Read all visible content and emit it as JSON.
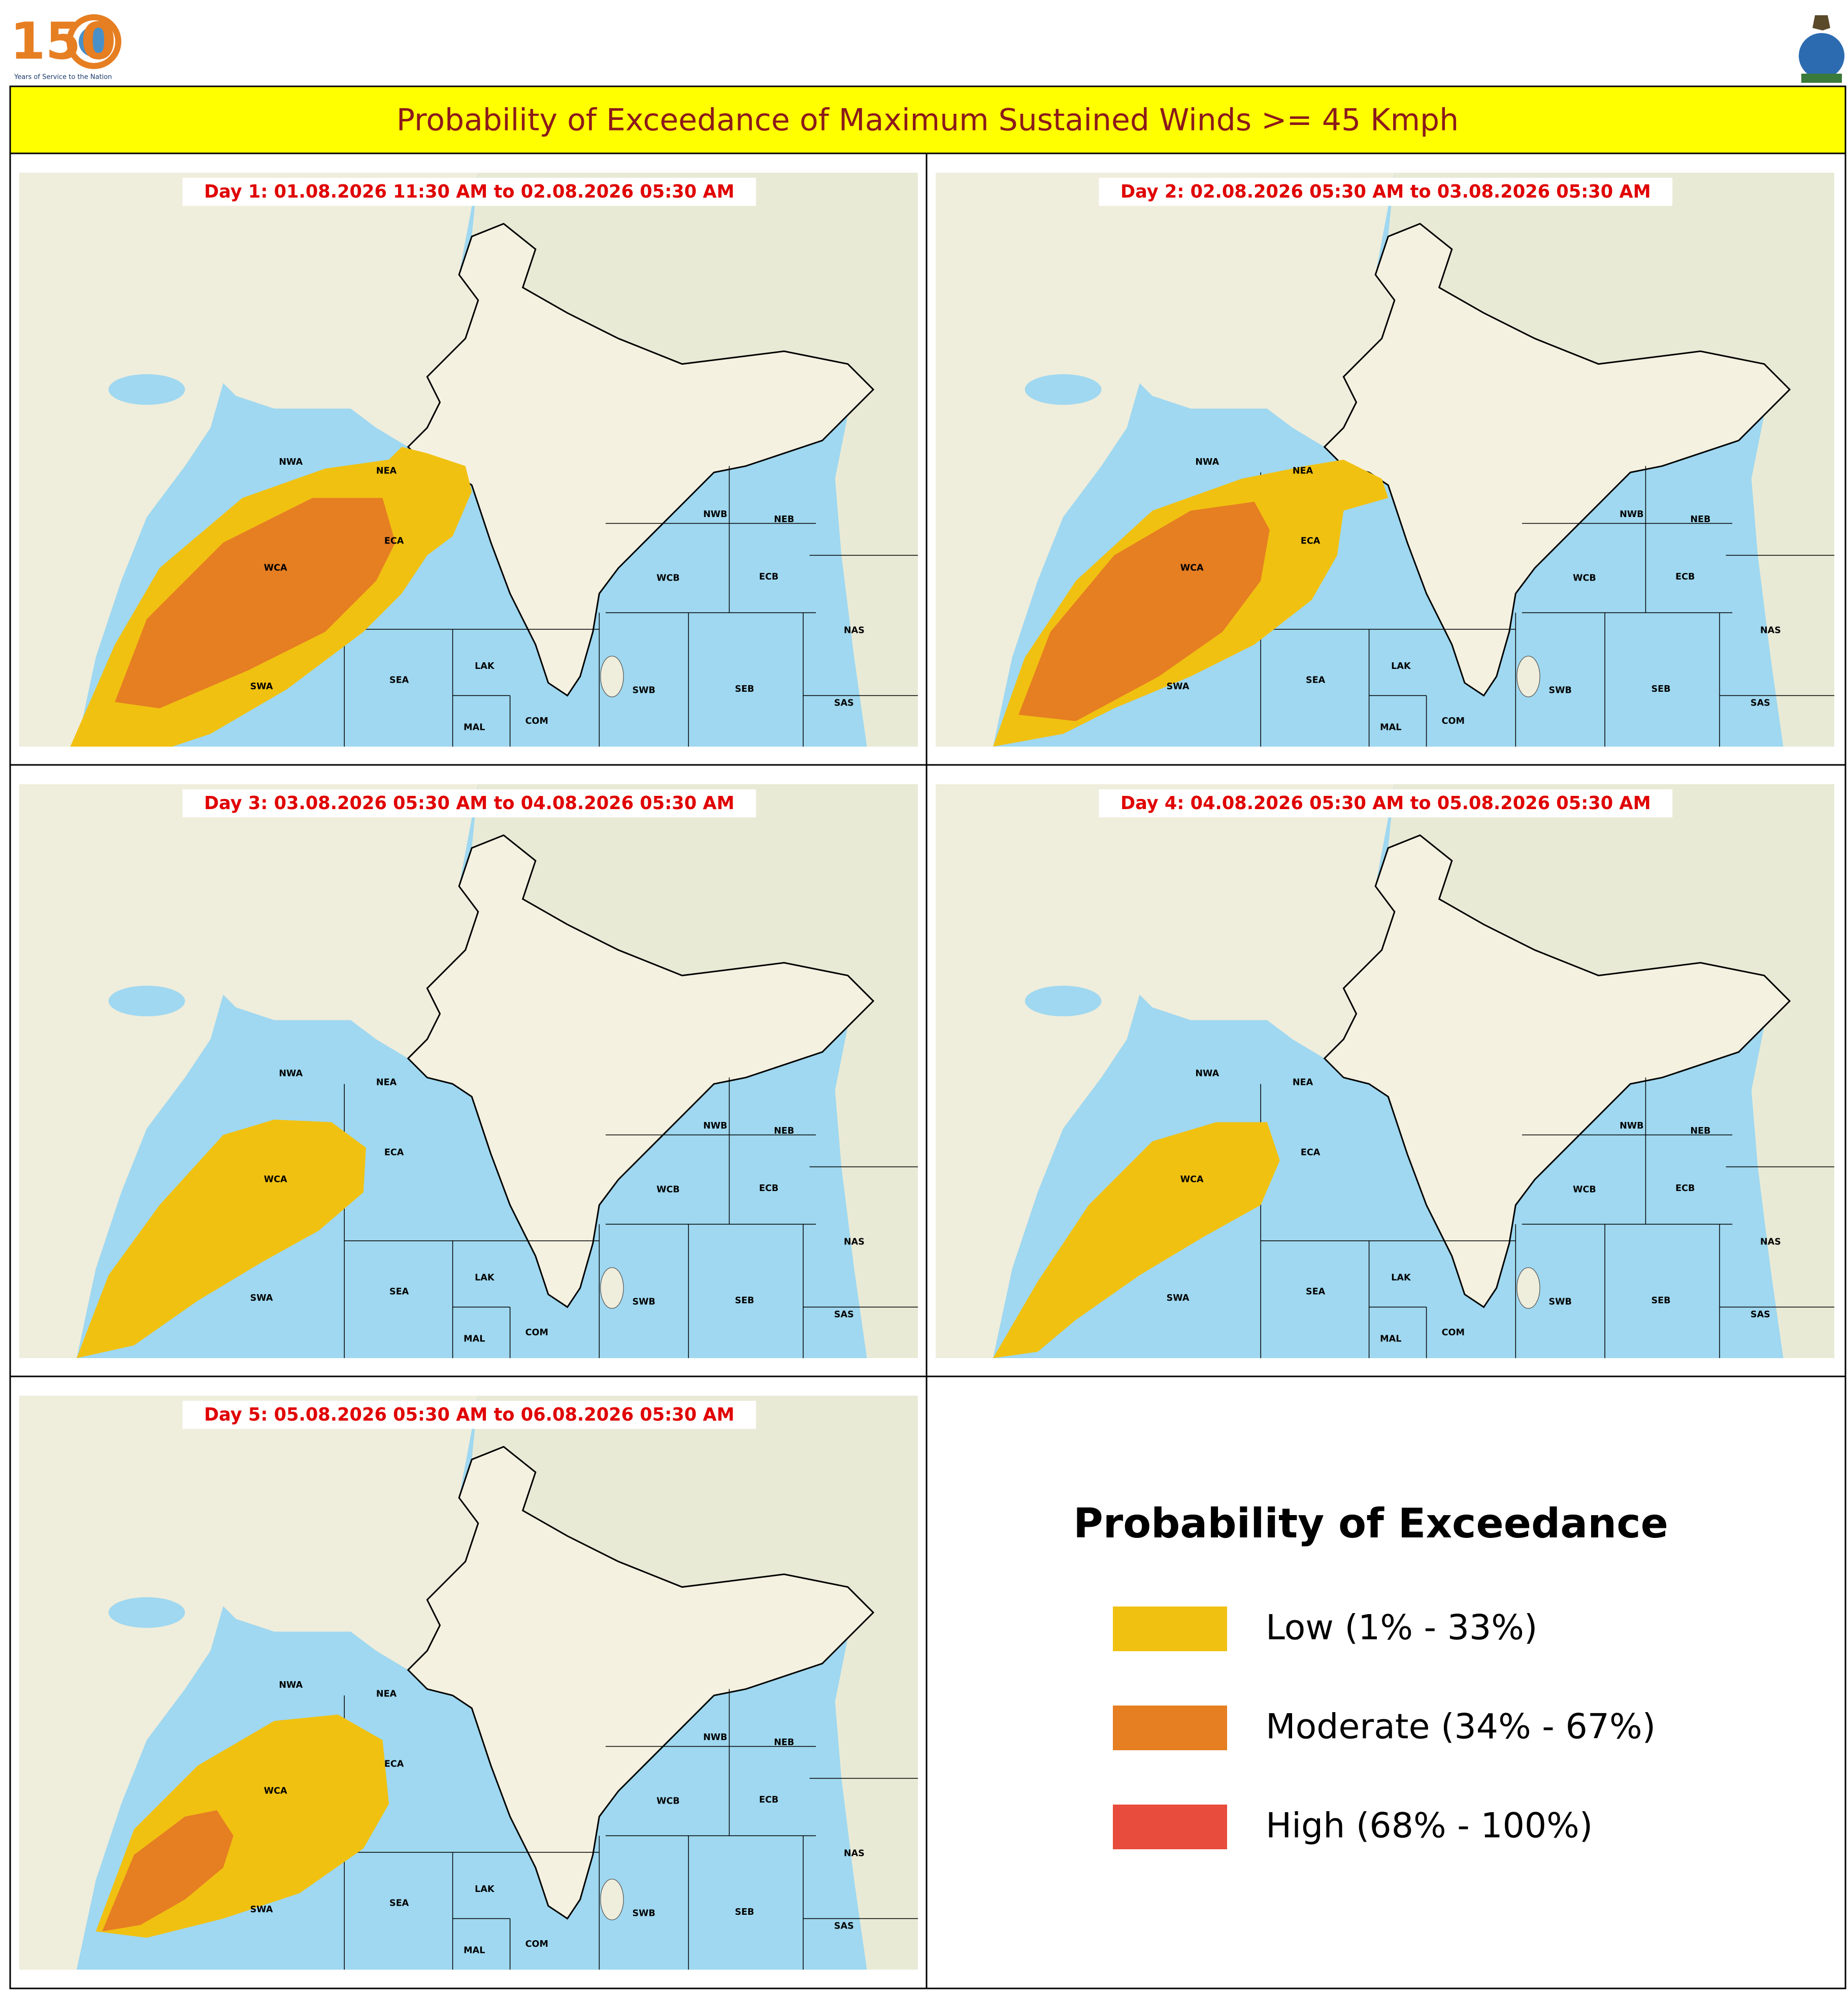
{
  "header": {
    "logo_text": "150",
    "logo_caption": "Years of Service to the Nation",
    "title": "Probability of Exceedance of Maximum Sustained Winds >= 45 Kmph"
  },
  "panels": [
    {
      "label": "Day 1: 01.08.2026 11:30 AM to 02.08.2026 05:30 AM"
    },
    {
      "label": "Day 2: 02.08.2026 05:30 AM to 03.08.2026 05:30 AM"
    },
    {
      "label": "Day 3: 03.08.2026 05:30 AM to 04.08.2026 05:30 AM"
    },
    {
      "label": "Day 4: 04.08.2026 05:30 AM to 05.08.2026 05:30 AM"
    },
    {
      "label": "Day 5: 05.08.2026 05:30 AM to 06.08.2026 05:30 AM"
    }
  ],
  "map": {
    "regions": [
      "NWA",
      "NEA",
      "ECA",
      "WCA",
      "SWA",
      "SEA",
      "LAK",
      "MAL",
      "COM",
      "WCB",
      "NWB",
      "NEB",
      "ECB",
      "NAS",
      "SAS",
      "SWB",
      "SEB"
    ]
  },
  "legend": {
    "title": "Probability of Exceedance",
    "items": [
      {
        "label": "Low (1% - 33%)",
        "color": "#f1c111"
      },
      {
        "label": "Moderate (34% - 67%)",
        "color": "#e67e22"
      },
      {
        "label": "High (68% - 100%)",
        "color": "#e74c3c"
      }
    ]
  }
}
